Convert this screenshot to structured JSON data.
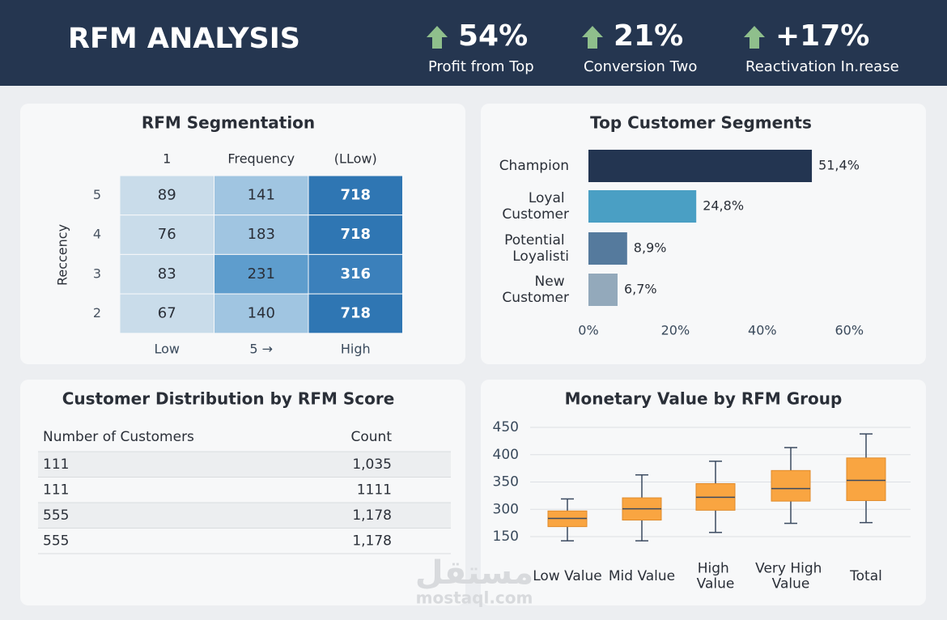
{
  "header": {
    "title": "RFM ANALYSIS",
    "kpis": [
      {
        "value": "54%",
        "label": "Profit from Top"
      },
      {
        "value": "21%",
        "label": "Conversion Two"
      },
      {
        "value": "+17%",
        "label": "Reactivation In.rease"
      }
    ]
  },
  "chart_data": [
    {
      "type": "heatmap",
      "title": "RFM Segmentation",
      "top_labels": [
        "1",
        "Frequency",
        "(LLow)"
      ],
      "bottom_labels": [
        "Low",
        "5 →",
        "High"
      ],
      "y_title": "Reccency",
      "rows": [
        "5",
        "4",
        "3",
        "2"
      ],
      "values": [
        [
          89,
          141,
          718
        ],
        [
          76,
          183,
          718
        ],
        [
          83,
          231,
          316
        ],
        [
          67,
          140,
          718
        ]
      ],
      "colors": [
        [
          "#c9dcea",
          "#a0c5e1",
          "#2f76b3"
        ],
        [
          "#c9dcea",
          "#a0c5e1",
          "#2f76b3"
        ],
        [
          "#c9dcea",
          "#5e9dcd",
          "#3b80bb"
        ],
        [
          "#c9dcea",
          "#a0c5e1",
          "#2f76b3"
        ]
      ]
    },
    {
      "type": "bar",
      "orientation": "horizontal",
      "title": "Top Customer Segments",
      "categories": [
        "Champion",
        "Loyal Customer",
        "Potential Loyalisti",
        "New Customer"
      ],
      "values": [
        51.4,
        24.8,
        8.9,
        6.7
      ],
      "value_labels": [
        "51,4%",
        "24,8%",
        "8,9%",
        "6,7%"
      ],
      "colors": [
        "#233551",
        "#4a9fc4",
        "#557a9d",
        "#93a9bb"
      ],
      "xlim": [
        0,
        62
      ],
      "xticks": [
        {
          "value": 0,
          "label": "0%"
        },
        {
          "value": 20,
          "label": "20%"
        },
        {
          "value": 40,
          "label": "40%"
        },
        {
          "value": 60,
          "label": "60%"
        }
      ]
    },
    {
      "type": "box",
      "title": "Monetary Value by RFM Group",
      "categories": [
        "Low Value",
        "Mid Value",
        "High Value",
        "Very High Value",
        "Total"
      ],
      "whisker_low": [
        127,
        127,
        173,
        223,
        227
      ],
      "q1": [
        205,
        241,
        295,
        315,
        316
      ],
      "median": [
        250,
        301,
        322,
        338,
        353
      ],
      "q3": [
        291,
        321,
        347,
        371,
        394
      ],
      "whisker_high": [
        319,
        363,
        388,
        413,
        438
      ],
      "color": "#f9a541",
      "ylim": [
        150,
        450
      ],
      "yticks": [
        150,
        300,
        350,
        400,
        450
      ],
      "scale": "piecewise",
      "grid": true
    }
  ],
  "table": {
    "title": "Customer Distribution by RFM Score",
    "columns": [
      "Number of Customers",
      "Count"
    ],
    "rows": [
      [
        "111",
        "1,035"
      ],
      [
        "111",
        "1111"
      ],
      [
        "555",
        "1,178"
      ],
      [
        "555",
        "1,178"
      ]
    ]
  },
  "watermark": {
    "arabic": "مستقل",
    "latin": "mostaql.com"
  }
}
